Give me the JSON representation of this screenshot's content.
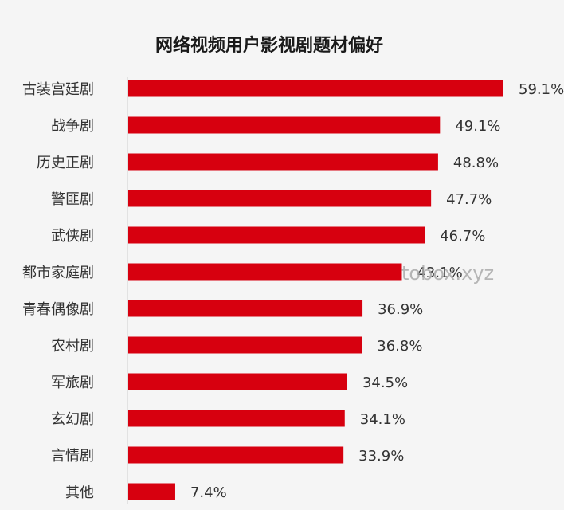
{
  "chart_data": {
    "type": "bar",
    "orientation": "horizontal",
    "title": "网络视频用户影视剧题材偏好",
    "categories": [
      "古装宫廷剧",
      "战争剧",
      "历史正剧",
      "警匪剧",
      "武侠剧",
      "都市家庭剧",
      "青春偶像剧",
      "农村剧",
      "军旅剧",
      "玄幻剧",
      "言情剧",
      "其他"
    ],
    "values": [
      59.1,
      49.1,
      48.8,
      47.7,
      46.7,
      43.1,
      36.9,
      36.8,
      34.5,
      34.1,
      33.9,
      7.4
    ],
    "value_labels": [
      "59.1%",
      "49.1%",
      "48.8%",
      "47.7%",
      "46.7%",
      "43.1%",
      "36.9%",
      "36.8%",
      "34.5%",
      "34.1%",
      "33.9%",
      "7.4%"
    ],
    "unit": "%",
    "xlim": [
      0,
      59.1
    ],
    "grid": false,
    "legend": "none",
    "bar_color": "#d7000f"
  },
  "watermark": "tobox.xyz"
}
